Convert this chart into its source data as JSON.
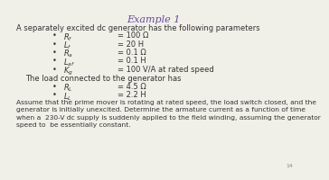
{
  "title": "Example 1",
  "title_color": "#6A4C9C",
  "bg_color": "#F0EFE8",
  "text_color": "#333333",
  "intro_line": "A separately excited dc generator has the following parameters",
  "params": [
    [
      "R_f",
      "= 100 Ω"
    ],
    [
      "L_f",
      "= 20 H"
    ],
    [
      "R_a",
      "= 0.1 Ω"
    ],
    [
      "L_af",
      "= 0.1 H"
    ],
    [
      "K_g",
      "= 100 V/A at rated speed"
    ]
  ],
  "load_line": "The load connected to the generator has",
  "load_params": [
    [
      "R_L",
      "= 4.5 Ω"
    ],
    [
      "L_L",
      "= 2.2 H"
    ]
  ],
  "body_text": "Assume that the prime mover is rotating at rated speed, the load switch closed, and the\ngenerator is initially unexcited. Determine the armature current as a function of time\nwhen a  230-V dc supply is suddenly applied to the field winding, assuming the generator\nspeed to  be essentially constant.",
  "page_num": "14",
  "param_math": [
    "$R_f$",
    "$L_f$",
    "$R_a$",
    "$L_{af}$",
    "$K_g$"
  ],
  "load_math": [
    "$R_L$",
    "$L_L$"
  ]
}
